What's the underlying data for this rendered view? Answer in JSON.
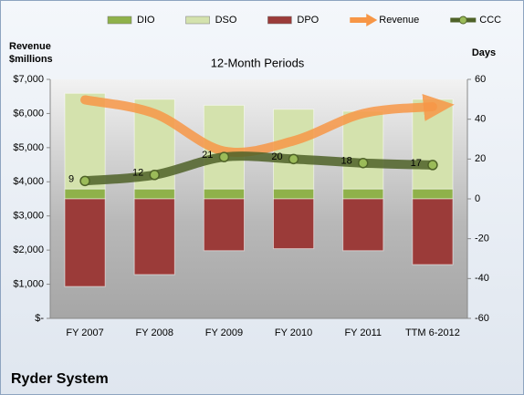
{
  "chart_data": {
    "type": "bar",
    "title": "12-Month Periods",
    "ylabel": "Revenue $millions",
    "y2label": "Days",
    "caption": "Ryder System",
    "categories": [
      "FY 2007",
      "FY 2008",
      "FY 2009",
      "FY 2010",
      "FY 2011",
      "TTM 6-2012"
    ],
    "series": [
      {
        "name": "DIO",
        "type": "bar",
        "axis": "y2",
        "color": "#8fb14a",
        "values": [
          5,
          5,
          5,
          5,
          5,
          5
        ]
      },
      {
        "name": "DSO",
        "type": "bar",
        "axis": "y2",
        "color": "#d4e2ad",
        "values": [
          48,
          45,
          42,
          40,
          39,
          45
        ]
      },
      {
        "name": "DPO",
        "type": "bar",
        "axis": "y2",
        "color": "#9b3b39",
        "values": [
          -44,
          -38,
          -26,
          -25,
          -26,
          -33
        ]
      },
      {
        "name": "Revenue",
        "type": "line",
        "axis": "y",
        "color": "#f79646",
        "values": [
          6400,
          6000,
          4900,
          5200,
          6000,
          6200
        ]
      },
      {
        "name": "CCC",
        "type": "line",
        "axis": "y2",
        "color": "#4f6228",
        "values": [
          9,
          12,
          21,
          20,
          18,
          17
        ],
        "data_labels": true
      }
    ],
    "ylim": [
      0,
      7000
    ],
    "yticks": [
      {
        "value": 0,
        "label": "$-"
      },
      {
        "value": 1000,
        "label": "$1,000"
      },
      {
        "value": 2000,
        "label": "$2,000"
      },
      {
        "value": 3000,
        "label": "$3,000"
      },
      {
        "value": 4000,
        "label": "$4,000"
      },
      {
        "value": 5000,
        "label": "$5,000"
      },
      {
        "value": 6000,
        "label": "$6,000"
      },
      {
        "value": 7000,
        "label": "$7,000"
      }
    ],
    "y2lim": [
      -60,
      60
    ],
    "y2ticks": [
      -60,
      -40,
      -20,
      0,
      20,
      40,
      60
    ],
    "legend": "top"
  }
}
